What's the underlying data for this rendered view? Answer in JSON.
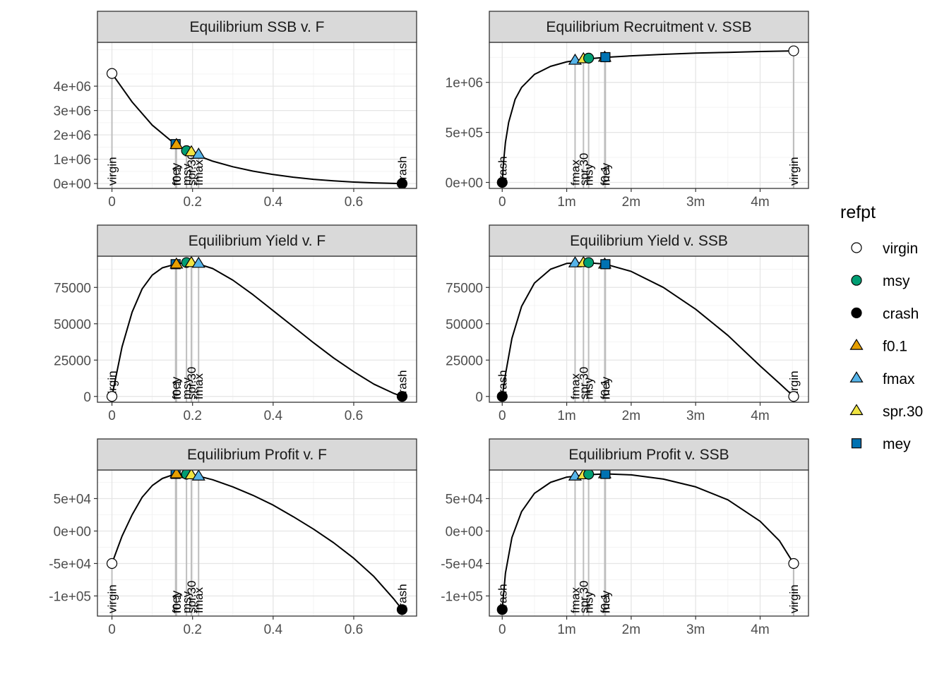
{
  "legend": {
    "title": "refpt",
    "items": [
      {
        "label": "virgin",
        "shape": "circle",
        "fill": "#FFFFFF"
      },
      {
        "label": "msy",
        "shape": "circle",
        "fill": "#009E73"
      },
      {
        "label": "crash",
        "shape": "circle",
        "fill": "#000000"
      },
      {
        "label": "f0.1",
        "shape": "triangle",
        "fill": "#E69F00"
      },
      {
        "label": "fmax",
        "shape": "triangle",
        "fill": "#56B4E9"
      },
      {
        "label": "spr.30",
        "shape": "triangle",
        "fill": "#F0E442"
      },
      {
        "label": "mey",
        "shape": "square",
        "fill": "#0072B2"
      }
    ]
  },
  "chart_data": [
    {
      "type": "line",
      "title": "Equilibrium SSB v. F",
      "xlim": [
        -0.036,
        0.756
      ],
      "ylim": [
        -200000,
        5800000
      ],
      "x_ticks": [
        {
          "v": 0,
          "label": "0"
        },
        {
          "v": 0.2,
          "label": "0.2"
        },
        {
          "v": 0.4,
          "label": "0.4"
        },
        {
          "v": 0.6,
          "label": "0.6"
        }
      ],
      "y_ticks": [
        {
          "v": 0,
          "label": "0e+00"
        },
        {
          "v": 1000000,
          "label": "1e+06"
        },
        {
          "v": 2000000,
          "label": "2e+06"
        },
        {
          "v": 3000000,
          "label": "3e+06"
        },
        {
          "v": 4000000,
          "label": "4e+06"
        }
      ],
      "curve": {
        "x": [
          0,
          0.05,
          0.1,
          0.158,
          0.2,
          0.25,
          0.3,
          0.35,
          0.4,
          0.45,
          0.5,
          0.55,
          0.6,
          0.65,
          0.7,
          0.72
        ],
        "y": [
          4520000,
          3350000,
          2400000,
          1600000,
          1230000,
          920000,
          690000,
          510000,
          370000,
          260000,
          175000,
          110000,
          62000,
          28000,
          6000,
          0
        ]
      },
      "points": [
        {
          "label": "virgin",
          "x": 0,
          "y": 4520000
        },
        {
          "label": "mey",
          "x": 0.158,
          "y": 1620000
        },
        {
          "label": "f0.1",
          "x": 0.16,
          "y": 1600000
        },
        {
          "label": "msy",
          "x": 0.185,
          "y": 1350000
        },
        {
          "label": "spr.30",
          "x": 0.197,
          "y": 1300000
        },
        {
          "label": "fmax",
          "x": 0.215,
          "y": 1200000
        },
        {
          "label": "crash",
          "x": 0.72,
          "y": 0
        }
      ]
    },
    {
      "type": "line",
      "title": "Equilibrium Recruitment v. SSB",
      "xlim": [
        -200000,
        4750000
      ],
      "ylim": [
        -60000,
        1400000
      ],
      "x_ticks": [
        {
          "v": 0,
          "label": "0"
        },
        {
          "v": 1000000,
          "label": "1m"
        },
        {
          "v": 2000000,
          "label": "2m"
        },
        {
          "v": 3000000,
          "label": "3m"
        },
        {
          "v": 4000000,
          "label": "4m"
        }
      ],
      "y_ticks": [
        {
          "v": 0,
          "label": "0e+00"
        },
        {
          "v": 500000,
          "label": "5e+05"
        },
        {
          "v": 1000000,
          "label": "1e+06"
        }
      ],
      "curve": {
        "x": [
          0,
          20000,
          50000,
          100000,
          200000,
          300000,
          500000,
          750000,
          1000000,
          1250000,
          1600000,
          2000000,
          2500000,
          3000000,
          3500000,
          4000000,
          4520000
        ],
        "y": [
          0,
          200000,
          400000,
          600000,
          830000,
          950000,
          1080000,
          1160000,
          1205000,
          1230000,
          1250000,
          1265000,
          1280000,
          1292000,
          1300000,
          1308000,
          1315000
        ]
      },
      "points": [
        {
          "label": "crash",
          "x": 0,
          "y": 0
        },
        {
          "label": "fmax",
          "x": 1130000,
          "y": 1220000
        },
        {
          "label": "spr.30",
          "x": 1260000,
          "y": 1235000
        },
        {
          "label": "msy",
          "x": 1340000,
          "y": 1242000
        },
        {
          "label": "f0.1",
          "x": 1590000,
          "y": 1250000
        },
        {
          "label": "mey",
          "x": 1600000,
          "y": 1252000
        },
        {
          "label": "virgin",
          "x": 4520000,
          "y": 1315000
        }
      ]
    },
    {
      "type": "line",
      "title": "Equilibrium Yield v. F",
      "xlim": [
        -0.036,
        0.756
      ],
      "ylim": [
        -4000,
        96500
      ],
      "x_ticks": [
        {
          "v": 0,
          "label": "0"
        },
        {
          "v": 0.2,
          "label": "0.2"
        },
        {
          "v": 0.4,
          "label": "0.4"
        },
        {
          "v": 0.6,
          "label": "0.6"
        }
      ],
      "y_ticks": [
        {
          "v": 0,
          "label": "0"
        },
        {
          "v": 25000,
          "label": "25000"
        },
        {
          "v": 50000,
          "label": "50000"
        },
        {
          "v": 75000,
          "label": "75000"
        }
      ],
      "curve": {
        "x": [
          0,
          0.025,
          0.05,
          0.075,
          0.1,
          0.125,
          0.158,
          0.185,
          0.21,
          0.25,
          0.3,
          0.35,
          0.4,
          0.45,
          0.5,
          0.55,
          0.6,
          0.65,
          0.7,
          0.72
        ],
        "y": [
          0,
          34000,
          58000,
          74000,
          83500,
          88500,
          91000,
          92100,
          91500,
          88000,
          80000,
          70000,
          59000,
          48000,
          37000,
          26500,
          17000,
          8500,
          2000,
          0
        ]
      },
      "points": [
        {
          "label": "virgin",
          "x": 0,
          "y": 0
        },
        {
          "label": "mey",
          "x": 0.158,
          "y": 91000
        },
        {
          "label": "f0.1",
          "x": 0.16,
          "y": 91000
        },
        {
          "label": "msy",
          "x": 0.185,
          "y": 92100
        },
        {
          "label": "spr.30",
          "x": 0.197,
          "y": 92000
        },
        {
          "label": "fmax",
          "x": 0.215,
          "y": 91500
        },
        {
          "label": "crash",
          "x": 0.72,
          "y": 0
        }
      ]
    },
    {
      "type": "line",
      "title": "Equilibrium Yield v. SSB",
      "xlim": [
        -200000,
        4750000
      ],
      "ylim": [
        -4000,
        96500
      ],
      "x_ticks": [
        {
          "v": 0,
          "label": "0"
        },
        {
          "v": 1000000,
          "label": "1m"
        },
        {
          "v": 2000000,
          "label": "2m"
        },
        {
          "v": 3000000,
          "label": "3m"
        },
        {
          "v": 4000000,
          "label": "4m"
        }
      ],
      "y_ticks": [
        {
          "v": 0,
          "label": "0"
        },
        {
          "v": 25000,
          "label": "25000"
        },
        {
          "v": 50000,
          "label": "50000"
        },
        {
          "v": 75000,
          "label": "75000"
        }
      ],
      "curve": {
        "x": [
          0,
          50000,
          150000,
          300000,
          500000,
          750000,
          1000000,
          1300000,
          1600000,
          2000000,
          2500000,
          3000000,
          3500000,
          4000000,
          4300000,
          4520000
        ],
        "y": [
          0,
          15000,
          40000,
          62000,
          78000,
          87500,
          91500,
          92100,
          91000,
          86000,
          75000,
          60000,
          42000,
          21000,
          9000,
          0
        ]
      },
      "points": [
        {
          "label": "crash",
          "x": 0,
          "y": 0
        },
        {
          "label": "fmax",
          "x": 1130000,
          "y": 91800
        },
        {
          "label": "spr.30",
          "x": 1260000,
          "y": 92000
        },
        {
          "label": "msy",
          "x": 1340000,
          "y": 92100
        },
        {
          "label": "f0.1",
          "x": 1590000,
          "y": 91000
        },
        {
          "label": "mey",
          "x": 1600000,
          "y": 91000
        },
        {
          "label": "virgin",
          "x": 4520000,
          "y": 0
        }
      ]
    },
    {
      "type": "line",
      "title": "Equilibrium Profit v. F",
      "xlim": [
        -0.036,
        0.756
      ],
      "ylim": [
        -131000,
        94000
      ],
      "x_ticks": [
        {
          "v": 0,
          "label": "0"
        },
        {
          "v": 0.2,
          "label": "0.2"
        },
        {
          "v": 0.4,
          "label": "0.4"
        },
        {
          "v": 0.6,
          "label": "0.6"
        }
      ],
      "y_ticks": [
        {
          "v": -100000,
          "label": "-1e+05"
        },
        {
          "v": -50000,
          "label": "-5e+04"
        },
        {
          "v": 0,
          "label": "0e+00"
        },
        {
          "v": 50000,
          "label": "5e+04"
        }
      ],
      "curve": {
        "x": [
          0,
          0.025,
          0.05,
          0.075,
          0.1,
          0.125,
          0.158,
          0.185,
          0.215,
          0.25,
          0.3,
          0.35,
          0.4,
          0.45,
          0.5,
          0.55,
          0.6,
          0.65,
          0.7,
          0.72
        ],
        "y": [
          -50000,
          -8000,
          25000,
          52000,
          70000,
          81000,
          88000,
          87500,
          84500,
          79000,
          68000,
          55000,
          40000,
          22000,
          3000,
          -18000,
          -42000,
          -70000,
          -105000,
          -121000
        ]
      },
      "points": [
        {
          "label": "virgin",
          "x": 0,
          "y": -50000
        },
        {
          "label": "mey",
          "x": 0.158,
          "y": 88000
        },
        {
          "label": "f0.1",
          "x": 0.16,
          "y": 88000
        },
        {
          "label": "msy",
          "x": 0.185,
          "y": 87500
        },
        {
          "label": "spr.30",
          "x": 0.197,
          "y": 86500
        },
        {
          "label": "fmax",
          "x": 0.215,
          "y": 84500
        },
        {
          "label": "crash",
          "x": 0.72,
          "y": -121000
        }
      ]
    },
    {
      "type": "line",
      "title": "Equilibrium Profit v. SSB",
      "xlim": [
        -200000,
        4750000
      ],
      "ylim": [
        -131000,
        94000
      ],
      "x_ticks": [
        {
          "v": 0,
          "label": "0"
        },
        {
          "v": 1000000,
          "label": "1m"
        },
        {
          "v": 2000000,
          "label": "2m"
        },
        {
          "v": 3000000,
          "label": "3m"
        },
        {
          "v": 4000000,
          "label": "4m"
        }
      ],
      "y_ticks": [
        {
          "v": -100000,
          "label": "-1e+05"
        },
        {
          "v": -50000,
          "label": "-5e+04"
        },
        {
          "v": 0,
          "label": "0e+00"
        },
        {
          "v": 50000,
          "label": "5e+04"
        }
      ],
      "curve": {
        "x": [
          0,
          50000,
          150000,
          300000,
          500000,
          750000,
          1000000,
          1300000,
          1600000,
          2000000,
          2500000,
          3000000,
          3500000,
          4000000,
          4300000,
          4520000
        ],
        "y": [
          -121000,
          -65000,
          -10000,
          30000,
          58000,
          75000,
          83000,
          86500,
          88000,
          86500,
          80000,
          68000,
          48000,
          15000,
          -15000,
          -50000
        ]
      },
      "points": [
        {
          "label": "crash",
          "x": 0,
          "y": -121000
        },
        {
          "label": "fmax",
          "x": 1130000,
          "y": 84500
        },
        {
          "label": "spr.30",
          "x": 1260000,
          "y": 86500
        },
        {
          "label": "msy",
          "x": 1340000,
          "y": 87500
        },
        {
          "label": "f0.1",
          "x": 1590000,
          "y": 88000
        },
        {
          "label": "mey",
          "x": 1600000,
          "y": 88000
        },
        {
          "label": "virgin",
          "x": 4520000,
          "y": -50000
        }
      ]
    }
  ]
}
